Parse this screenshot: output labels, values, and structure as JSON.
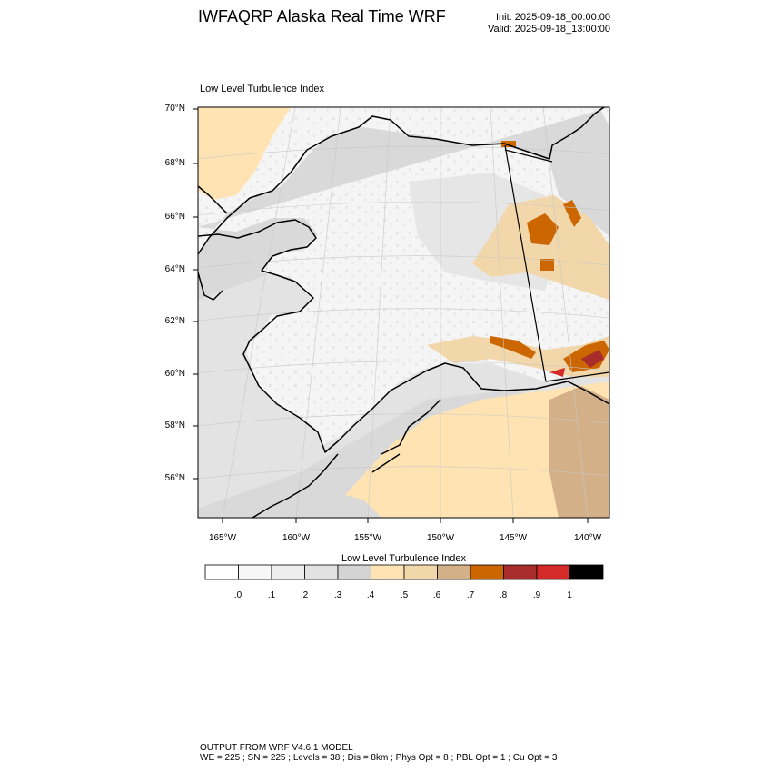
{
  "header": {
    "title": "IWFAQRP Alaska Real Time WRF",
    "init": "Init: 2025-09-18_00:00:00",
    "valid": "Valid: 2025-09-18_13:00:00"
  },
  "panel": {
    "title": "Low Level Turbulence Index"
  },
  "axes": {
    "lat_labels": [
      "70°N",
      "68°N",
      "66°N",
      "64°N",
      "62°N",
      "60°N",
      "58°N",
      "56°N"
    ],
    "lon_labels": [
      "165°W",
      "160°W",
      "155°W",
      "150°W",
      "145°W",
      "140°W"
    ]
  },
  "colorbar": {
    "title": "Low Level Turbulence Index",
    "labels": [
      ".0",
      ".1",
      ".2",
      ".3",
      ".4",
      ".5",
      ".6",
      ".7",
      ".8",
      ".9",
      "1"
    ],
    "colors": [
      "#ffffff",
      "#f7f7f7",
      "#eeeeee",
      "#e2e2e2",
      "#d4d4d4",
      "#ffe3b3",
      "#f2d7ab",
      "#d4b089",
      "#cc6600",
      "#a82c2c",
      "#d42a2a",
      "#000000"
    ]
  },
  "footer": {
    "line1": "OUTPUT FROM WRF V4.6.1 MODEL",
    "line2": "WE = 225 ; SN = 225 ; Levels = 38 ; Dis = 8km ; Phys Opt = 8 ; PBL Opt = 1 ; Cu Opt = 3"
  }
}
